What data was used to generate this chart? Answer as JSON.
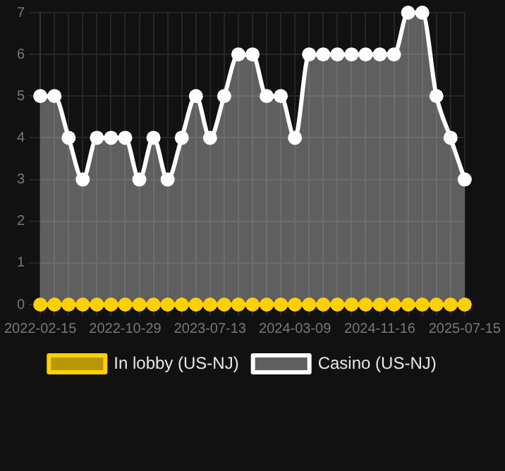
{
  "chart_data": {
    "type": "area",
    "categories": [
      "2022-02-15",
      null,
      null,
      null,
      null,
      null,
      "2022-10-29",
      null,
      null,
      null,
      null,
      null,
      "2023-07-13",
      null,
      null,
      null,
      null,
      null,
      "2024-03-09",
      null,
      null,
      null,
      null,
      null,
      "2024-11-16",
      null,
      null,
      null,
      null,
      null,
      "2025-07-15"
    ],
    "series": [
      {
        "name": "In lobby (US-NJ)",
        "type": "line",
        "color": "#ffd000",
        "values": [
          0,
          0,
          0,
          0,
          0,
          0,
          0,
          0,
          0,
          0,
          0,
          0,
          0,
          0,
          0,
          0,
          0,
          0,
          0,
          0,
          0,
          0,
          0,
          0,
          0,
          0,
          0,
          0,
          0,
          0,
          0
        ]
      },
      {
        "name": "Casino (US-NJ)",
        "color": "#ffffff",
        "values": [
          5,
          5,
          4,
          3,
          4,
          4,
          4,
          3,
          4,
          3,
          4,
          5,
          4,
          5,
          6,
          6,
          5,
          5,
          4,
          6,
          6,
          6,
          6,
          6,
          6,
          6,
          7,
          7,
          5,
          4,
          3
        ]
      }
    ],
    "ylim": [
      0,
      7
    ],
    "yticks": [
      0,
      1,
      2,
      3,
      4,
      5,
      6,
      7
    ],
    "grid": true,
    "legend": "bottom",
    "marker": "circle"
  }
}
